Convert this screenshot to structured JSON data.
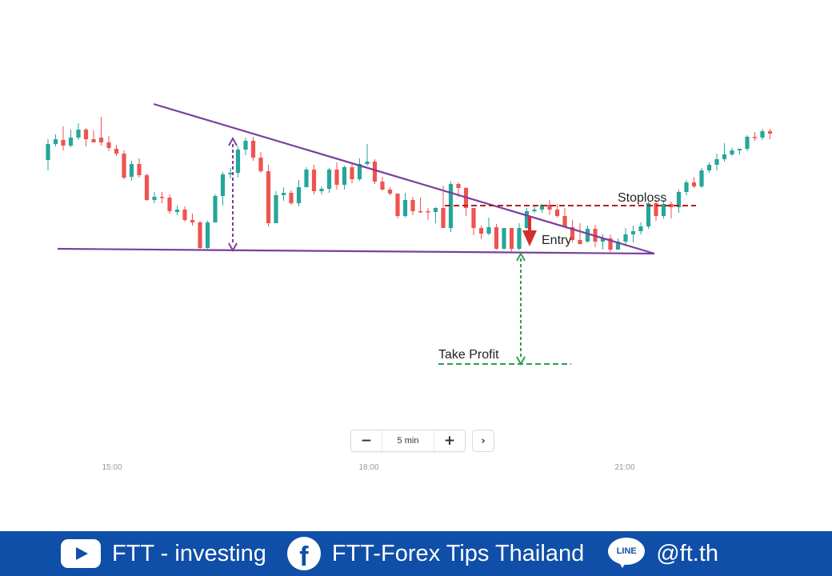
{
  "chart_data": {
    "type": "candlestick",
    "interval": "5 min",
    "x_ticks": [
      "15:00",
      "18:00",
      "21:00"
    ],
    "annotations": {
      "stoploss": "Stoploss",
      "entry": "Entry",
      "take_profit": "Take Profit"
    },
    "colors": {
      "up": "#26a69a",
      "down": "#ef5350",
      "triangle": "#7b3fa0",
      "stoploss": "#b71c1c",
      "take_profit": "#2e9e4f",
      "entry_arrow": "#d32f2f"
    },
    "candles": [
      [
        200,
        180,
        213,
        174
      ],
      [
        180,
        174,
        183,
        168
      ],
      [
        175,
        182,
        188,
        158
      ],
      [
        182,
        172,
        184,
        162
      ],
      [
        172,
        162,
        175,
        154
      ],
      [
        162,
        174,
        183,
        160
      ],
      [
        174,
        178,
        178,
        163
      ],
      [
        172,
        178,
        182,
        146
      ],
      [
        178,
        185,
        189,
        170
      ],
      [
        186,
        192,
        195,
        181
      ],
      [
        192,
        222,
        224,
        188
      ],
      [
        221,
        205,
        226,
        201
      ],
      [
        205,
        219,
        222,
        198
      ],
      [
        219,
        250,
        251,
        217
      ],
      [
        250,
        246,
        254,
        240
      ],
      [
        246,
        247,
        254,
        240
      ],
      [
        247,
        264,
        267,
        243
      ],
      [
        265,
        262,
        269,
        257
      ],
      [
        262,
        275,
        277,
        258
      ],
      [
        275,
        278,
        282,
        267
      ],
      [
        278,
        310,
        311,
        276
      ],
      [
        310,
        278,
        311,
        276
      ],
      [
        278,
        245,
        277,
        243
      ],
      [
        245,
        218,
        257,
        215
      ],
      [
        218,
        216,
        223,
        210
      ],
      [
        216,
        187,
        222,
        183
      ],
      [
        187,
        176,
        194,
        172
      ],
      [
        176,
        197,
        201,
        171
      ],
      [
        197,
        214,
        216,
        190
      ],
      [
        214,
        279,
        283,
        206
      ],
      [
        279,
        244,
        278,
        239
      ],
      [
        244,
        241,
        251,
        234
      ],
      [
        241,
        254,
        256,
        238
      ],
      [
        254,
        234,
        258,
        225
      ],
      [
        234,
        212,
        234,
        209
      ],
      [
        212,
        239,
        243,
        206
      ],
      [
        239,
        236,
        243,
        233
      ],
      [
        236,
        212,
        241,
        210
      ],
      [
        212,
        231,
        237,
        203
      ],
      [
        231,
        209,
        237,
        207
      ],
      [
        209,
        224,
        229,
        203
      ],
      [
        224,
        205,
        226,
        198
      ],
      [
        205,
        202,
        207,
        180
      ],
      [
        202,
        227,
        230,
        199
      ],
      [
        227,
        237,
        238,
        221
      ],
      [
        237,
        242,
        244,
        234
      ],
      [
        242,
        270,
        273,
        242
      ],
      [
        270,
        250,
        272,
        241
      ],
      [
        250,
        264,
        269,
        246
      ],
      [
        264,
        264,
        266,
        247
      ],
      [
        264,
        265,
        275,
        260
      ],
      [
        265,
        260,
        279,
        259
      ],
      [
        260,
        285,
        285,
        232
      ],
      [
        285,
        230,
        290,
        227
      ],
      [
        230,
        235,
        246,
        228
      ],
      [
        235,
        260,
        270,
        234
      ],
      [
        260,
        285,
        294,
        276
      ],
      [
        285,
        292,
        299,
        282
      ],
      [
        292,
        284,
        294,
        272
      ],
      [
        284,
        311,
        312,
        280
      ],
      [
        311,
        285,
        312,
        285
      ],
      [
        285,
        311,
        314,
        296
      ],
      [
        311,
        285,
        313,
        279
      ],
      [
        285,
        264,
        286,
        260
      ],
      [
        264,
        262,
        266,
        256
      ],
      [
        262,
        256,
        266,
        255
      ],
      [
        256,
        262,
        269,
        250
      ],
      [
        262,
        270,
        272,
        255
      ],
      [
        270,
        284,
        284,
        260
      ],
      [
        284,
        300,
        303,
        275
      ],
      [
        300,
        305,
        306,
        279
      ],
      [
        302,
        286,
        303,
        282
      ],
      [
        286,
        302,
        309,
        281
      ],
      [
        302,
        298,
        312,
        293
      ],
      [
        298,
        312,
        315,
        293
      ],
      [
        312,
        302,
        312,
        298
      ],
      [
        302,
        293,
        307,
        285
      ],
      [
        293,
        289,
        303,
        282
      ],
      [
        289,
        283,
        293,
        278
      ],
      [
        283,
        254,
        286,
        252
      ],
      [
        254,
        270,
        276,
        250
      ],
      [
        270,
        255,
        273,
        250
      ],
      [
        255,
        259,
        273,
        252
      ],
      [
        259,
        240,
        266,
        237
      ],
      [
        240,
        228,
        244,
        225
      ],
      [
        228,
        233,
        235,
        221
      ],
      [
        233,
        213,
        235,
        210
      ],
      [
        213,
        206,
        216,
        203
      ],
      [
        206,
        199,
        213,
        192
      ],
      [
        199,
        193,
        202,
        179
      ],
      [
        193,
        188,
        195,
        185
      ],
      [
        188,
        186,
        193,
        186
      ],
      [
        186,
        171,
        189,
        169
      ],
      [
        171,
        172,
        176,
        165
      ],
      [
        172,
        164,
        175,
        161
      ],
      [
        164,
        167,
        174,
        161
      ]
    ],
    "triangle": {
      "upper_line": [
        {
          "i": 0,
          "price": 180
        },
        {
          "i": 67,
          "price": 313
        }
      ],
      "lower_line_price": 311
    },
    "stoploss_price": 257,
    "entry_price": 313,
    "take_profit_price": 455
  },
  "zoom": {
    "minus": "−",
    "label": "5 min",
    "plus": "+",
    "next": "›"
  },
  "footer": {
    "youtube": "FTT - investing",
    "facebook_icon": "f",
    "facebook": "FTT-Forex Tips Thailand",
    "line_icon": "LINE",
    "line": "@ft.th"
  }
}
